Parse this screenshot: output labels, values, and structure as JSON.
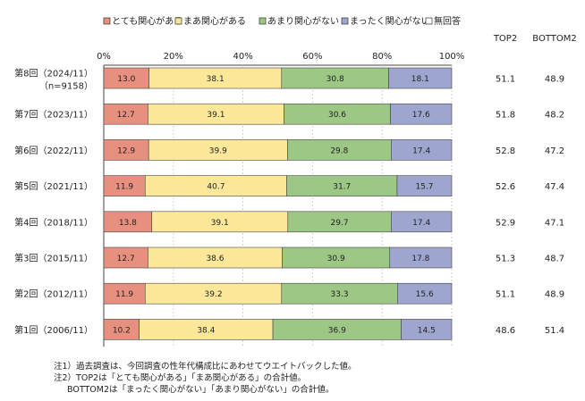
{
  "chart_data": {
    "type": "bar",
    "orientation": "horizontal",
    "stacked": "percent",
    "legend_position": "top",
    "grid": true,
    "xlim": [
      0,
      100
    ],
    "x_ticks": [
      "0%",
      "20%",
      "40%",
      "60%",
      "80%",
      "100%"
    ],
    "categories": [
      {
        "label": "第8回（2024/11）",
        "sublabel": "（n=9158）"
      },
      {
        "label": "第7回（2023/11）",
        "sublabel": ""
      },
      {
        "label": "第6回（2022/11）",
        "sublabel": ""
      },
      {
        "label": "第5回（2021/11）",
        "sublabel": ""
      },
      {
        "label": "第4回（2018/11）",
        "sublabel": ""
      },
      {
        "label": "第3回（2015/11）",
        "sublabel": ""
      },
      {
        "label": "第2回（2012/11）",
        "sublabel": ""
      },
      {
        "label": "第1回（2006/11）",
        "sublabel": ""
      }
    ],
    "series": [
      {
        "name": "とても関心がある",
        "color": "#e8907f",
        "values": [
          13.0,
          12.7,
          12.9,
          11.9,
          13.8,
          12.7,
          11.9,
          10.2
        ],
        "labels": [
          "13.0",
          "12.7",
          "12.9",
          "11.9",
          "13.8",
          "12.7",
          "11.9",
          "10.2"
        ]
      },
      {
        "name": "まあ関心がある",
        "color": "#fde89a",
        "values": [
          38.1,
          39.1,
          39.9,
          40.7,
          39.1,
          38.6,
          39.2,
          38.4
        ],
        "labels": [
          "38.1",
          "39.1",
          "39.9",
          "40.7",
          "39.1",
          "38.6",
          "39.2",
          "38.4"
        ]
      },
      {
        "name": "あまり関心がない",
        "color": "#9cc785",
        "values": [
          30.8,
          30.6,
          29.8,
          31.7,
          29.7,
          30.9,
          33.3,
          36.9
        ],
        "labels": [
          "30.8",
          "30.6",
          "29.8",
          "31.7",
          "29.7",
          "30.9",
          "33.3",
          "36.9"
        ]
      },
      {
        "name": "まったく関心がない",
        "color": "#9ea6cf",
        "values": [
          18.1,
          17.6,
          17.4,
          15.7,
          17.4,
          17.8,
          15.6,
          14.5
        ],
        "labels": [
          "18.1",
          "17.6",
          "17.4",
          "15.7",
          "17.4",
          "17.8",
          "15.6",
          "14.5"
        ]
      },
      {
        "name": "無回答",
        "color": "#ffffff",
        "values": [
          0,
          0,
          0,
          0,
          0,
          0,
          0,
          0
        ],
        "labels": []
      }
    ],
    "side_columns": [
      {
        "header": "TOP2",
        "values": [
          "51.1",
          "51.8",
          "52.8",
          "52.6",
          "52.9",
          "51.3",
          "51.1",
          "48.6"
        ]
      },
      {
        "header": "BOTTOM2",
        "values": [
          "48.9",
          "48.2",
          "47.2",
          "47.4",
          "47.1",
          "48.7",
          "48.9",
          "51.4"
        ]
      }
    ]
  },
  "notes": {
    "line1": "注1）過去調査は、今回調査の性年代構成比にあわせてウエイトバックした値。",
    "line2": "注2）TOP2は「とても関心がある」「まあ関心がある」の合計値。",
    "line3": "BOTTOM2は「まったく関心がない」「あまり関心がない」の合計値。"
  }
}
